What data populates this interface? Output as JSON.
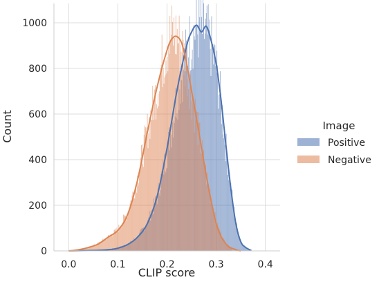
{
  "chart_data": {
    "type": "histogram",
    "xlabel": "CLIP score",
    "ylabel": "Count",
    "xlim": [
      -0.03,
      0.43
    ],
    "ylim": [
      0,
      1085
    ],
    "xticks": [
      0.0,
      0.1,
      0.2,
      0.3,
      0.4
    ],
    "xtick_labels": [
      "0.0",
      "0.1",
      "0.2",
      "0.3",
      "0.4"
    ],
    "yticks": [
      0,
      200,
      400,
      600,
      800,
      1000
    ],
    "ytick_labels": [
      "0",
      "200",
      "400",
      "600",
      "800",
      "1000"
    ],
    "grid": true,
    "legend": {
      "title": "Image",
      "placement": "right"
    },
    "kde": true,
    "series": [
      {
        "name": "Positive",
        "color": "#4c72b0",
        "kde_x": [
          0.0,
          0.05,
          0.08,
          0.1,
          0.12,
          0.14,
          0.16,
          0.18,
          0.2,
          0.22,
          0.24,
          0.25,
          0.26,
          0.27,
          0.28,
          0.29,
          0.3,
          0.31,
          0.32,
          0.33,
          0.34,
          0.35,
          0.36,
          0.37
        ],
        "kde_y": [
          0,
          2,
          5,
          12,
          28,
          60,
          120,
          240,
          450,
          700,
          900,
          960,
          990,
          960,
          985,
          920,
          820,
          660,
          460,
          270,
          120,
          40,
          15,
          3
        ],
        "hist_x": [
          0.06,
          0.08,
          0.1,
          0.12,
          0.14,
          0.16,
          0.18,
          0.2,
          0.22,
          0.24,
          0.25,
          0.26,
          0.27,
          0.28,
          0.29,
          0.3,
          0.31,
          0.32,
          0.33,
          0.34,
          0.35,
          0.36
        ],
        "hist_y": [
          3,
          8,
          15,
          30,
          65,
          130,
          250,
          460,
          720,
          920,
          1000,
          1040,
          1030,
          1010,
          950,
          850,
          690,
          480,
          290,
          130,
          45,
          15
        ]
      },
      {
        "name": "Negative",
        "color": "#dd8452",
        "kde_x": [
          0.0,
          0.02,
          0.04,
          0.06,
          0.08,
          0.1,
          0.12,
          0.14,
          0.16,
          0.18,
          0.2,
          0.21,
          0.22,
          0.23,
          0.24,
          0.26,
          0.28,
          0.3,
          0.32,
          0.34,
          0.35
        ],
        "kde_y": [
          0,
          5,
          15,
          30,
          60,
          90,
          160,
          310,
          520,
          720,
          880,
          930,
          940,
          910,
          820,
          580,
          330,
          120,
          30,
          5,
          0
        ],
        "hist_x": [
          0.04,
          0.06,
          0.08,
          0.1,
          0.12,
          0.14,
          0.16,
          0.18,
          0.19,
          0.2,
          0.21,
          0.22,
          0.23,
          0.24,
          0.26,
          0.28,
          0.3,
          0.32
        ],
        "hist_y": [
          15,
          35,
          65,
          100,
          180,
          340,
          560,
          760,
          880,
          960,
          1010,
          1000,
          950,
          860,
          610,
          350,
          130,
          30
        ]
      }
    ]
  }
}
